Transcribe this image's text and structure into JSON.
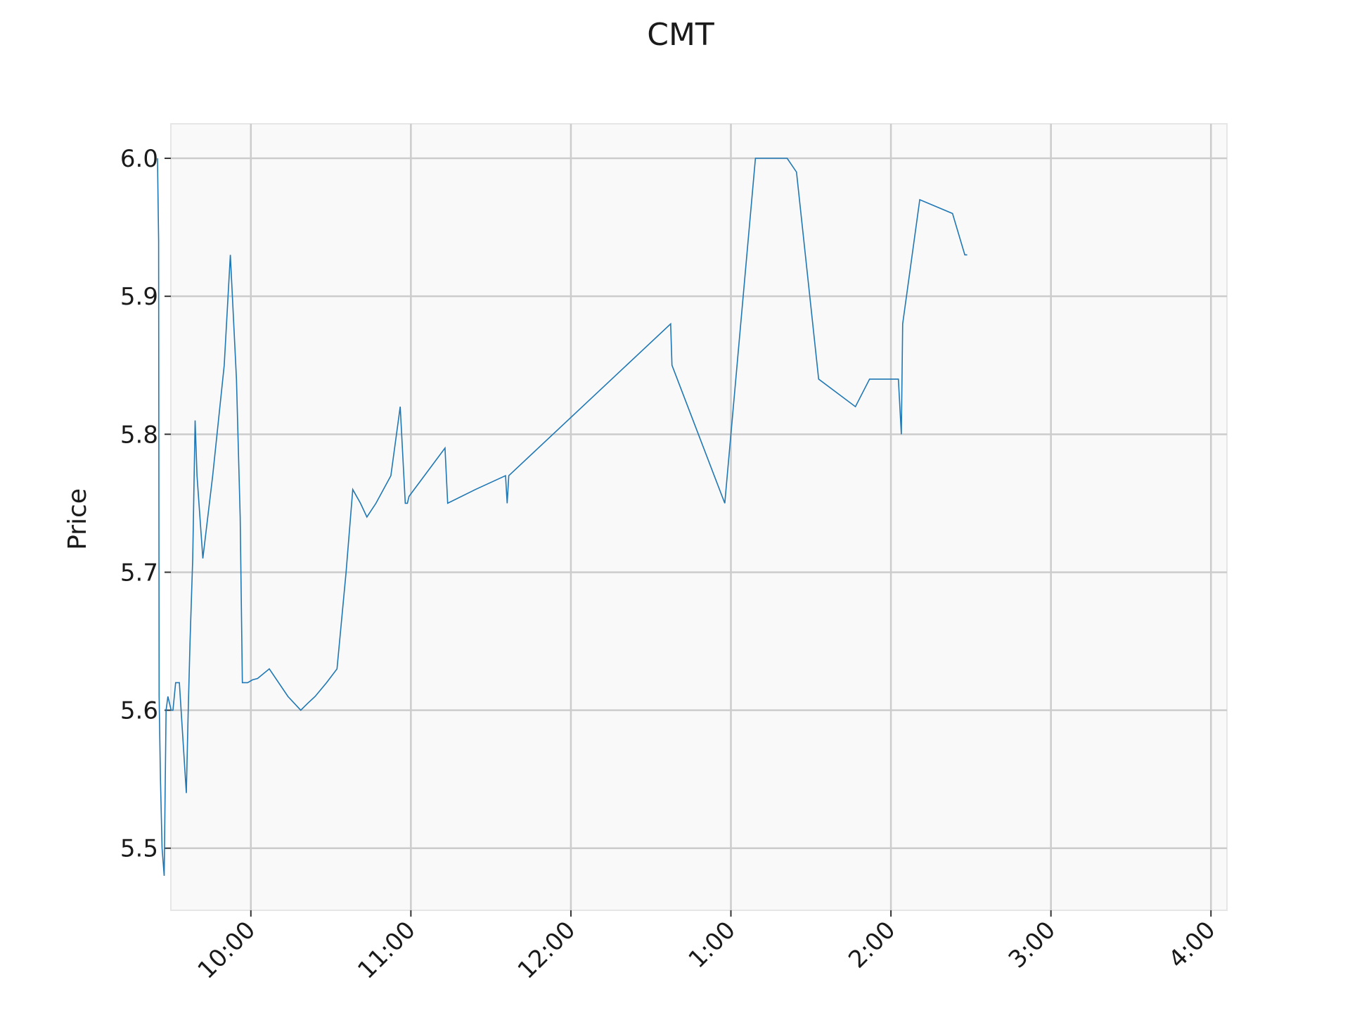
{
  "chart_data": {
    "type": "line",
    "title": "CMT",
    "xlabel": "",
    "ylabel": "Price",
    "grid": true,
    "legend": "none",
    "colors": {
      "line": "#1f77b4",
      "plot_background": "#f9f9f9",
      "grid": "#cccccc",
      "frame": "#e6e6e6"
    },
    "x_unit": "minutes since midnight",
    "xlim": [
      570,
      966
    ],
    "ylim": [
      5.455,
      6.025
    ],
    "x_ticks": [
      {
        "value": 600,
        "label": "10:00"
      },
      {
        "value": 660,
        "label": "11:00"
      },
      {
        "value": 720,
        "label": "12:00"
      },
      {
        "value": 780,
        "label": "1:00"
      },
      {
        "value": 840,
        "label": "2:00"
      },
      {
        "value": 900,
        "label": "3:00"
      },
      {
        "value": 960,
        "label": "4:00"
      }
    ],
    "y_ticks": [
      {
        "value": 5.5,
        "label": "5.5"
      },
      {
        "value": 5.6,
        "label": "5.6"
      },
      {
        "value": 5.7,
        "label": "5.7"
      },
      {
        "value": 5.8,
        "label": "5.8"
      },
      {
        "value": 5.9,
        "label": "5.9"
      },
      {
        "value": 6.0,
        "label": "6.0"
      }
    ],
    "series": [
      {
        "name": "",
        "x": [
          565.0,
          565.4,
          565.6,
          566.1,
          566.7,
          567.5,
          568.2,
          568.9,
          570.1,
          570.8,
          571.8,
          573.2,
          575.8,
          576.5,
          577.2,
          578.2,
          579.1,
          579.8,
          582.0,
          585.7,
          590.0,
          592.3,
          594.6,
          596.0,
          596.8,
          598.3,
          598.8,
          600.6,
          602.5,
          606.9,
          613.9,
          618.7,
          621.3,
          624.1,
          628.4,
          632.3,
          635.7,
          638.2,
          641.1,
          643.5,
          646.9,
          652.5,
          656.0,
          657.9,
          658.7,
          659.3,
          672.8,
          673.8,
          684.2,
          695.5,
          696.1,
          696.7,
          757.4,
          757.9,
          777.7,
          789.2,
          796.4,
          801.1,
          804.6,
          812.9,
          826.7,
          832.0,
          842.8,
          843.9,
          844.4,
          850.8,
          863.1,
          867.7,
          868.6
        ],
        "y": [
          6.0,
          5.94,
          5.61,
          5.55,
          5.5,
          5.48,
          5.6,
          5.61,
          5.6,
          5.6,
          5.62,
          5.62,
          5.54,
          5.6,
          5.65,
          5.71,
          5.81,
          5.77,
          5.71,
          5.77,
          5.85,
          5.93,
          5.84,
          5.74,
          5.62,
          5.62,
          5.62,
          5.622,
          5.623,
          5.63,
          5.61,
          5.6,
          5.605,
          5.61,
          5.62,
          5.63,
          5.7,
          5.76,
          5.75,
          5.74,
          5.75,
          5.77,
          5.82,
          5.75,
          5.75,
          5.755,
          5.79,
          5.75,
          5.76,
          5.77,
          5.75,
          5.77,
          5.88,
          5.85,
          5.75,
          6.0,
          6.0,
          6.0,
          5.99,
          5.84,
          5.82,
          5.84,
          5.84,
          5.8,
          5.88,
          5.97,
          5.96,
          5.93,
          5.93
        ]
      }
    ]
  }
}
